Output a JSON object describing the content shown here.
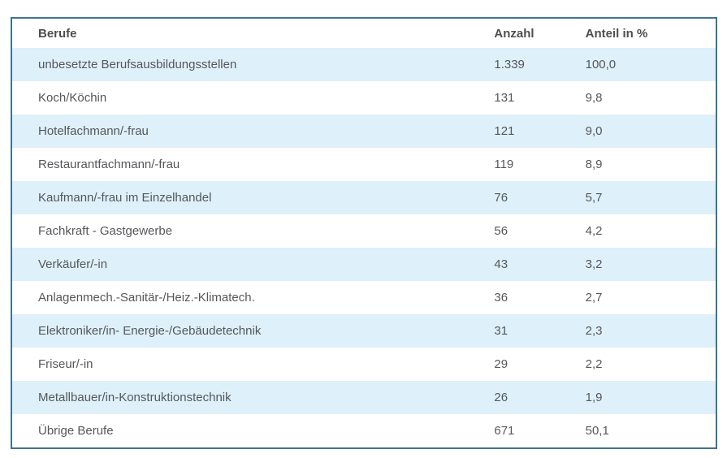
{
  "colors": {
    "table_border": "#3e7390",
    "row_stripe_blue": "#def0f9",
    "row_white": "#ffffff",
    "body_text": "#55575b",
    "header_text": "#4e4e50"
  },
  "chart_data": {
    "type": "table",
    "title": "",
    "columns": [
      "Berufe",
      "Anzahl",
      "Anteil in %"
    ],
    "rows": [
      {
        "beruf": "unbesetzte Berufsausbildungsstellen",
        "anzahl": "1.339",
        "anzahl_value": 1339,
        "anteil": "100,0",
        "anteil_value": 100.0
      },
      {
        "beruf": "Koch/Köchin",
        "anzahl": "131",
        "anzahl_value": 131,
        "anteil": "9,8",
        "anteil_value": 9.8
      },
      {
        "beruf": "Hotelfachmann/-frau",
        "anzahl": "121",
        "anzahl_value": 121,
        "anteil": "9,0",
        "anteil_value": 9.0
      },
      {
        "beruf": "Restaurantfachmann/-frau",
        "anzahl": "119",
        "anzahl_value": 119,
        "anteil": "8,9",
        "anteil_value": 8.9
      },
      {
        "beruf": "Kaufmann/-frau im Einzelhandel",
        "anzahl": "76",
        "anzahl_value": 76,
        "anteil": "5,7",
        "anteil_value": 5.7
      },
      {
        "beruf": "Fachkraft - Gastgewerbe",
        "anzahl": "56",
        "anzahl_value": 56,
        "anteil": "4,2",
        "anteil_value": 4.2
      },
      {
        "beruf": "Verkäufer/-in",
        "anzahl": "43",
        "anzahl_value": 43,
        "anteil": "3,2",
        "anteil_value": 3.2
      },
      {
        "beruf": "Anlagenmech.-Sanitär-/Heiz.-Klimatech.",
        "anzahl": "36",
        "anzahl_value": 36,
        "anteil": "2,7",
        "anteil_value": 2.7
      },
      {
        "beruf": "Elektroniker/in- Energie-/Gebäudetechnik",
        "anzahl": "31",
        "anzahl_value": 31,
        "anteil": "2,3",
        "anteil_value": 2.3
      },
      {
        "beruf": "Friseur/-in",
        "anzahl": "29",
        "anzahl_value": 29,
        "anteil": "2,2",
        "anteil_value": 2.2
      },
      {
        "beruf": "Metallbauer/in-Konstruktionstechnik",
        "anzahl": "26",
        "anzahl_value": 26,
        "anteil": "1,9",
        "anteil_value": 1.9
      },
      {
        "beruf": "Übrige Berufe",
        "anzahl": "671",
        "anzahl_value": 671,
        "anteil": "50,1",
        "anteil_value": 50.1
      }
    ]
  }
}
